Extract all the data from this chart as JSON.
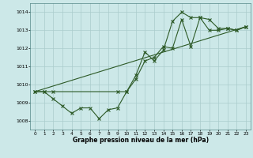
{
  "xlabel": "Graphe pression niveau de la mer (hPa)",
  "bg_color": "#cce8e8",
  "grid_color": "#aacccc",
  "line_color": "#2d5a27",
  "xlim": [
    -0.5,
    23.5
  ],
  "ylim": [
    1007.5,
    1014.5
  ],
  "yticks": [
    1008,
    1009,
    1010,
    1011,
    1012,
    1013,
    1014
  ],
  "xticks": [
    0,
    1,
    2,
    3,
    4,
    5,
    6,
    7,
    8,
    9,
    10,
    11,
    12,
    13,
    14,
    15,
    16,
    17,
    18,
    19,
    20,
    21,
    22,
    23
  ],
  "series1_x": [
    0,
    1,
    2,
    3,
    4,
    5,
    6,
    7,
    8,
    9,
    10,
    11,
    12,
    13,
    14,
    15,
    16,
    17,
    18,
    19,
    20,
    21,
    22,
    23
  ],
  "series1_y": [
    1009.6,
    1009.6,
    1009.2,
    1008.8,
    1008.4,
    1008.7,
    1008.7,
    1008.1,
    1008.6,
    1008.7,
    1009.6,
    1010.3,
    1011.3,
    1011.5,
    1012.1,
    1012.0,
    1013.6,
    1012.1,
    1013.7,
    1013.0,
    1013.0,
    1013.1,
    1013.0,
    1013.2
  ],
  "series2_x": [
    0,
    1,
    2,
    9,
    10,
    11,
    12,
    13,
    14,
    15,
    16,
    17,
    18,
    19,
    20,
    21,
    22,
    23
  ],
  "series2_y": [
    1009.6,
    1009.6,
    1009.6,
    1009.6,
    1009.6,
    1010.5,
    1011.8,
    1011.3,
    1011.9,
    1013.5,
    1014.0,
    1013.7,
    1013.7,
    1013.6,
    1013.1,
    1013.1,
    1013.0,
    1013.2
  ],
  "series3_x": [
    0,
    23
  ],
  "series3_y": [
    1009.6,
    1013.2
  ]
}
